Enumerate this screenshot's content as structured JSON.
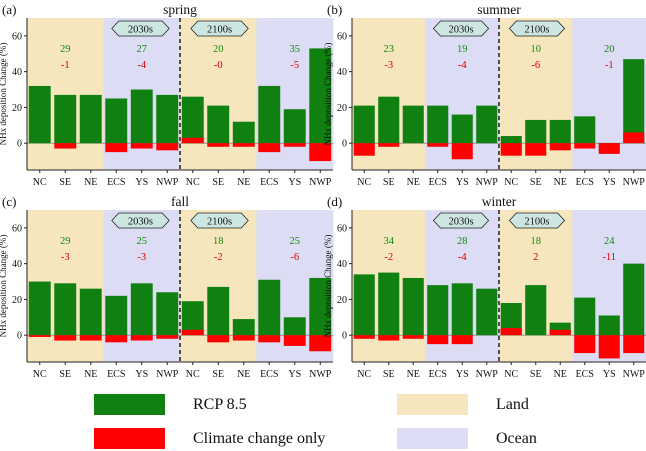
{
  "colors": {
    "rcp": "#108010",
    "climate": "#ff0000",
    "land": "#f5e6bd",
    "ocean": "#dcdcf5",
    "period_box": "#cde6e1",
    "num_green": "#128c12",
    "num_red": "#dd0000"
  },
  "y_axis_label": "NHx deposition Change (%)",
  "period_labels": [
    "2030s",
    "2100s"
  ],
  "chart_data": [
    {
      "type": "bar",
      "panel": "(a)",
      "title": "spring",
      "categories": [
        "NC",
        "SE",
        "NE",
        "ECS",
        "YS",
        "NWP",
        "NC",
        "SE",
        "NE",
        "ECS",
        "YS",
        "NWP"
      ],
      "region_group": [
        "Land",
        "Land",
        "Land",
        "Ocean",
        "Ocean",
        "Ocean",
        "Land",
        "Land",
        "Land",
        "Ocean",
        "Ocean",
        "Ocean"
      ],
      "periods": [
        "2030s",
        "2030s",
        "2030s",
        "2030s",
        "2030s",
        "2030s",
        "2100s",
        "2100s",
        "2100s",
        "2100s",
        "2100s",
        "2100s"
      ],
      "series": [
        {
          "name": "RCP 8.5",
          "values": [
            32,
            27,
            27,
            25,
            30,
            27,
            26,
            21,
            12,
            32,
            19,
            53
          ]
        },
        {
          "name": "Climate change only",
          "values": [
            0,
            -3,
            0,
            -5,
            -3,
            -4,
            3,
            -2,
            -2,
            -5,
            -2,
            -10
          ]
        }
      ],
      "group_labels": [
        {
          "rcp": "29",
          "climate": "-1"
        },
        {
          "rcp": "27",
          "climate": "-4"
        },
        {
          "rcp": "20",
          "climate": "-0"
        },
        {
          "rcp": "35",
          "climate": "-5"
        }
      ],
      "ylim": [
        -15,
        70
      ],
      "yticks": [
        0,
        20,
        40,
        60
      ]
    },
    {
      "type": "bar",
      "panel": "(b)",
      "title": "summer",
      "categories": [
        "NC",
        "SE",
        "NE",
        "ECS",
        "YS",
        "NWP",
        "NC",
        "SE",
        "NE",
        "ECS",
        "YS",
        "NWP"
      ],
      "region_group": [
        "Land",
        "Land",
        "Land",
        "Ocean",
        "Ocean",
        "Ocean",
        "Land",
        "Land",
        "Land",
        "Ocean",
        "Ocean",
        "Ocean"
      ],
      "periods": [
        "2030s",
        "2030s",
        "2030s",
        "2030s",
        "2030s",
        "2030s",
        "2100s",
        "2100s",
        "2100s",
        "2100s",
        "2100s",
        "2100s"
      ],
      "series": [
        {
          "name": "RCP 8.5",
          "values": [
            21,
            26,
            21,
            21,
            16,
            21,
            4,
            13,
            13,
            15,
            -4,
            47
          ]
        },
        {
          "name": "Climate change only",
          "values": [
            -7,
            -2,
            0,
            -2,
            -9,
            0,
            -7,
            -7,
            -4,
            -3,
            -6,
            6
          ]
        }
      ],
      "group_labels": [
        {
          "rcp": "23",
          "climate": "-3"
        },
        {
          "rcp": "19",
          "climate": "-4"
        },
        {
          "rcp": "10",
          "climate": "-6"
        },
        {
          "rcp": "20",
          "climate": "-1"
        }
      ],
      "ylim": [
        -15,
        70
      ],
      "yticks": [
        0,
        20,
        40,
        60
      ]
    },
    {
      "type": "bar",
      "panel": "(c)",
      "title": "fall",
      "categories": [
        "NC",
        "SE",
        "NE",
        "ECS",
        "YS",
        "NWP",
        "NC",
        "SE",
        "NE",
        "ECS",
        "YS",
        "NWP"
      ],
      "region_group": [
        "Land",
        "Land",
        "Land",
        "Ocean",
        "Ocean",
        "Ocean",
        "Land",
        "Land",
        "Land",
        "Ocean",
        "Ocean",
        "Ocean"
      ],
      "periods": [
        "2030s",
        "2030s",
        "2030s",
        "2030s",
        "2030s",
        "2030s",
        "2100s",
        "2100s",
        "2100s",
        "2100s",
        "2100s",
        "2100s"
      ],
      "series": [
        {
          "name": "RCP 8.5",
          "values": [
            30,
            29,
            26,
            22,
            29,
            24,
            19,
            27,
            9,
            31,
            10,
            32
          ]
        },
        {
          "name": "Climate change only",
          "values": [
            -1,
            -3,
            -3,
            -4,
            -3,
            -2,
            3,
            -4,
            -3,
            -4,
            -6,
            -9
          ]
        }
      ],
      "group_labels": [
        {
          "rcp": "29",
          "climate": "-3"
        },
        {
          "rcp": "25",
          "climate": "-3"
        },
        {
          "rcp": "18",
          "climate": "-2"
        },
        {
          "rcp": "25",
          "climate": "-6"
        }
      ],
      "ylim": [
        -15,
        70
      ],
      "yticks": [
        0,
        20,
        40,
        60
      ]
    },
    {
      "type": "bar",
      "panel": "(d)",
      "title": "winter",
      "categories": [
        "NC",
        "SE",
        "NE",
        "ECS",
        "YS",
        "NWP",
        "NC",
        "SE",
        "NE",
        "ECS",
        "YS",
        "NWP"
      ],
      "region_group": [
        "Land",
        "Land",
        "Land",
        "Ocean",
        "Ocean",
        "Ocean",
        "Land",
        "Land",
        "Land",
        "Ocean",
        "Ocean",
        "Ocean"
      ],
      "periods": [
        "2030s",
        "2030s",
        "2030s",
        "2030s",
        "2030s",
        "2030s",
        "2100s",
        "2100s",
        "2100s",
        "2100s",
        "2100s",
        "2100s"
      ],
      "series": [
        {
          "name": "RCP 8.5",
          "values": [
            34,
            35,
            32,
            28,
            29,
            26,
            18,
            28,
            7,
            21,
            11,
            40
          ]
        },
        {
          "name": "Climate change only",
          "values": [
            -2,
            -3,
            -2,
            -5,
            -5,
            0,
            4,
            0,
            3,
            -10,
            -13,
            -10
          ]
        }
      ],
      "group_labels": [
        {
          "rcp": "34",
          "climate": "-2"
        },
        {
          "rcp": "28",
          "climate": "-4"
        },
        {
          "rcp": "18",
          "climate": "2"
        },
        {
          "rcp": "24",
          "climate": "-11"
        }
      ],
      "ylim": [
        -15,
        70
      ],
      "yticks": [
        0,
        20,
        40,
        60
      ]
    }
  ],
  "legend": {
    "items": [
      {
        "label": "RCP 8.5",
        "color": "#108010"
      },
      {
        "label": "Climate change only",
        "color": "#ff0000"
      },
      {
        "label": "Land",
        "color": "#f5e6bd"
      },
      {
        "label": "Ocean",
        "color": "#dcdcf5"
      }
    ]
  }
}
